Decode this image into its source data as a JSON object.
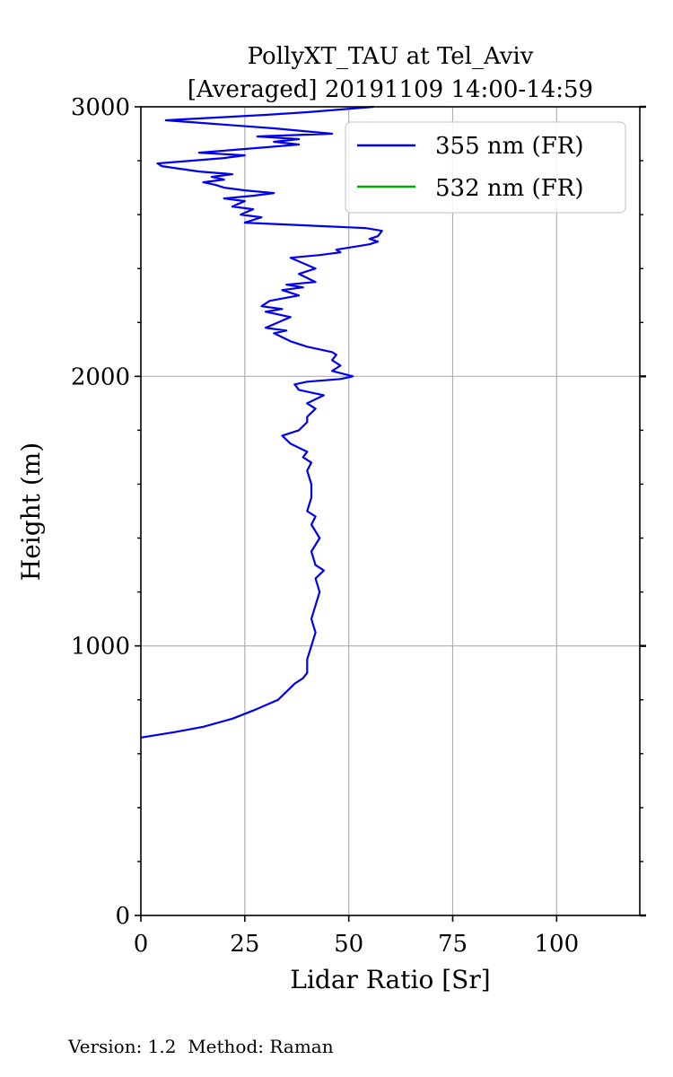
{
  "chart_data": {
    "type": "line",
    "title": [
      "PollyXT_TAU at Tel_Aviv",
      "[Averaged] 20191109 14:00-14:59"
    ],
    "xlabel": "Lidar Ratio [Sr]",
    "ylabel": "Height (m)",
    "xlim": [
      0,
      120
    ],
    "ylim": [
      0,
      3000
    ],
    "x_ticks": [
      "0",
      "25",
      "50",
      "75",
      "100"
    ],
    "y_ticks": [
      "0",
      "1000",
      "2000",
      "3000"
    ],
    "grid": true,
    "legend_position": "top-right",
    "series": [
      {
        "name": "355 nm (FR)",
        "color": "#0000ee",
        "points": [
          [
            0,
            660
          ],
          [
            8,
            680
          ],
          [
            15,
            700
          ],
          [
            22,
            730
          ],
          [
            27,
            760
          ],
          [
            30,
            780
          ],
          [
            33,
            800
          ],
          [
            35,
            830
          ],
          [
            37,
            860
          ],
          [
            39,
            880
          ],
          [
            40,
            900
          ],
          [
            40,
            950
          ],
          [
            41,
            1000
          ],
          [
            42,
            1050
          ],
          [
            41,
            1100
          ],
          [
            42,
            1150
          ],
          [
            43,
            1200
          ],
          [
            42,
            1250
          ],
          [
            44,
            1280
          ],
          [
            42,
            1300
          ],
          [
            41,
            1350
          ],
          [
            43,
            1400
          ],
          [
            41,
            1450
          ],
          [
            42,
            1480
          ],
          [
            40,
            1500
          ],
          [
            41,
            1550
          ],
          [
            41,
            1600
          ],
          [
            40,
            1650
          ],
          [
            41,
            1680
          ],
          [
            39,
            1700
          ],
          [
            40,
            1720
          ],
          [
            36,
            1750
          ],
          [
            34,
            1780
          ],
          [
            38,
            1800
          ],
          [
            40,
            1830
          ],
          [
            40,
            1850
          ],
          [
            42,
            1880
          ],
          [
            40,
            1900
          ],
          [
            44,
            1930
          ],
          [
            38,
            1950
          ],
          [
            37,
            1970
          ],
          [
            40,
            1980
          ],
          [
            48,
            1990
          ],
          [
            51,
            2000
          ],
          [
            46,
            2020
          ],
          [
            48,
            2040
          ],
          [
            46,
            2060
          ],
          [
            47,
            2080
          ],
          [
            46,
            2090
          ],
          [
            40,
            2110
          ],
          [
            36,
            2130
          ],
          [
            32,
            2160
          ],
          [
            35,
            2170
          ],
          [
            30,
            2180
          ],
          [
            33,
            2200
          ],
          [
            36,
            2220
          ],
          [
            30,
            2240
          ],
          [
            34,
            2250
          ],
          [
            29,
            2260
          ],
          [
            31,
            2280
          ],
          [
            38,
            2300
          ],
          [
            34,
            2320
          ],
          [
            39,
            2330
          ],
          [
            35,
            2340
          ],
          [
            42,
            2350
          ],
          [
            38,
            2380
          ],
          [
            42,
            2400
          ],
          [
            39,
            2420
          ],
          [
            36,
            2440
          ],
          [
            43,
            2450
          ],
          [
            48,
            2460
          ],
          [
            47,
            2470
          ],
          [
            51,
            2480
          ],
          [
            55,
            2490
          ],
          [
            57,
            2500
          ],
          [
            55,
            2510
          ],
          [
            57,
            2520
          ],
          [
            58,
            2540
          ],
          [
            54,
            2550
          ],
          [
            25,
            2570
          ],
          [
            29,
            2590
          ],
          [
            24,
            2600
          ],
          [
            27,
            2620
          ],
          [
            22,
            2630
          ],
          [
            25,
            2650
          ],
          [
            20,
            2660
          ],
          [
            27,
            2670
          ],
          [
            32,
            2680
          ],
          [
            25,
            2690
          ],
          [
            20,
            2700
          ],
          [
            18,
            2710
          ],
          [
            15,
            2720
          ],
          [
            20,
            2730
          ],
          [
            17,
            2740
          ],
          [
            22,
            2750
          ],
          [
            14,
            2760
          ],
          [
            5,
            2780
          ],
          [
            4,
            2790
          ],
          [
            12,
            2800
          ],
          [
            20,
            2810
          ],
          [
            25,
            2820
          ],
          [
            14,
            2830
          ],
          [
            22,
            2840
          ],
          [
            30,
            2850
          ],
          [
            38,
            2860
          ],
          [
            32,
            2870
          ],
          [
            38,
            2880
          ],
          [
            28,
            2890
          ],
          [
            46,
            2900
          ],
          [
            32,
            2920
          ],
          [
            6,
            2950
          ],
          [
            18,
            2960
          ],
          [
            30,
            2970
          ],
          [
            40,
            2980
          ],
          [
            48,
            2990
          ],
          [
            56,
            3000
          ]
        ]
      },
      {
        "name": "532 nm (FR)",
        "color": "#00aa00",
        "points": []
      }
    ]
  },
  "footer": {
    "text": "Version: 1.2  Method: Raman"
  }
}
